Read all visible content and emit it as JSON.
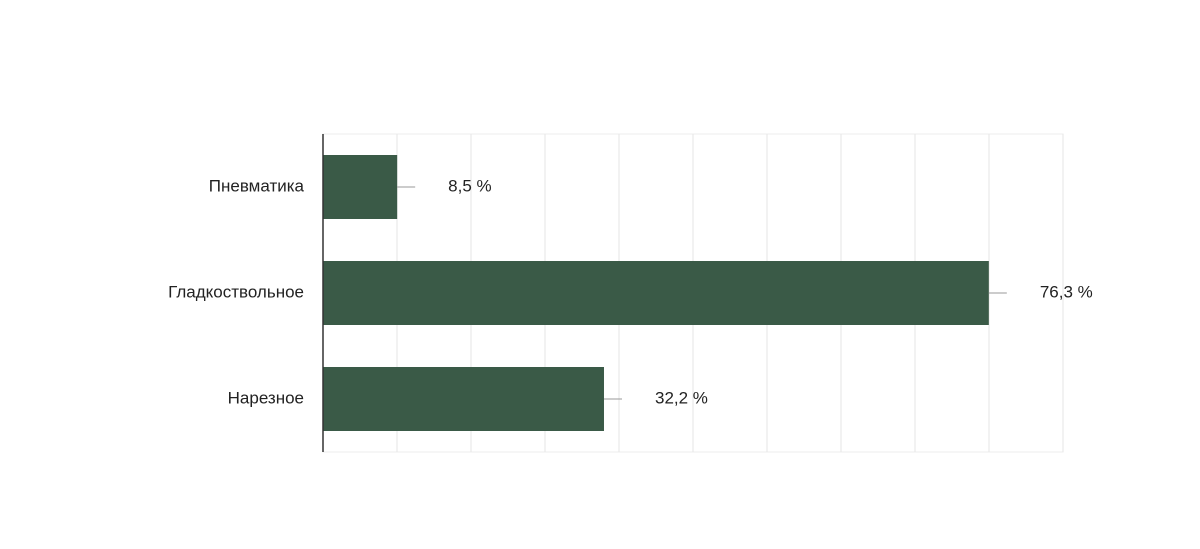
{
  "chart_data": {
    "type": "hbar",
    "categories": [
      "Пневматика",
      "Гладкоствольное",
      "Нарезное"
    ],
    "values": [
      8.5,
      76.3,
      32.2
    ],
    "value_labels": [
      "8,5 %",
      "76,3 %",
      "32,2 %"
    ],
    "color": "#3a5a47",
    "xlim": [
      0,
      84.8
    ],
    "xticks": [
      0,
      8.48,
      16.96,
      25.44,
      33.92,
      42.4,
      50.88,
      59.36,
      67.84,
      76.32,
      84.8
    ],
    "grid": true
  }
}
